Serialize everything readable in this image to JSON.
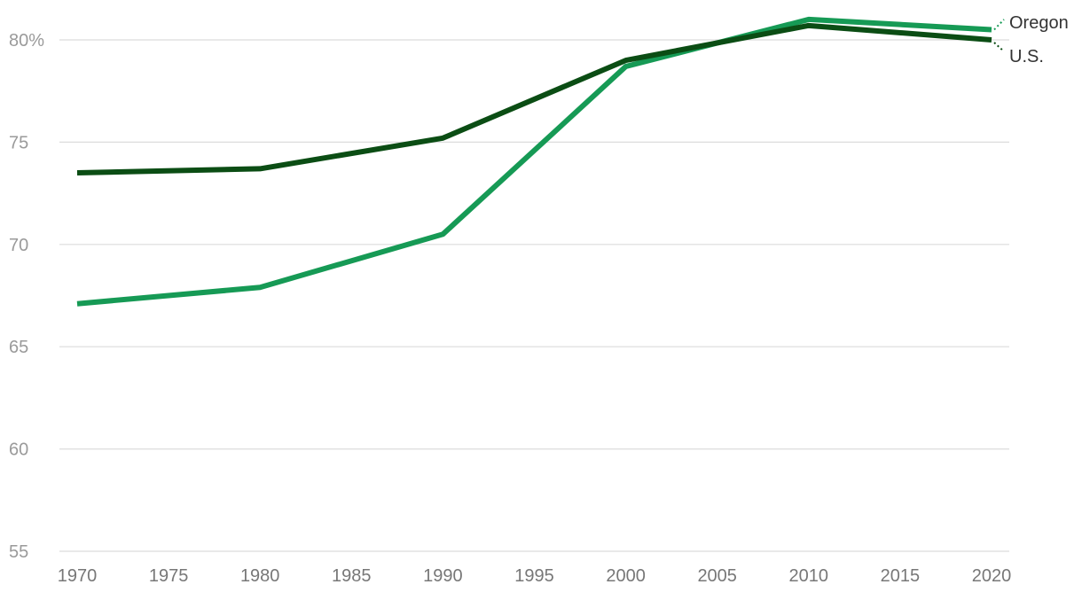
{
  "chart_data": {
    "type": "line",
    "title": "",
    "xlabel": "",
    "ylabel": "",
    "x": [
      1970,
      1980,
      1990,
      2000,
      2010,
      2020
    ],
    "xlim": [
      1970,
      2020
    ],
    "ylim": [
      55,
      81.5
    ],
    "x_ticks": [
      "1970",
      "1975",
      "1980",
      "1985",
      "1990",
      "1995",
      "2000",
      "2005",
      "2010",
      "2015",
      "2020"
    ],
    "y_ticks": [
      {
        "value": 80,
        "label": "80%"
      },
      {
        "value": 75,
        "label": "75"
      },
      {
        "value": 70,
        "label": "70"
      },
      {
        "value": 65,
        "label": "65"
      },
      {
        "value": 60,
        "label": "60"
      },
      {
        "value": 55,
        "label": "55"
      }
    ],
    "grid": true,
    "legend": "direct labels right",
    "series": [
      {
        "name": "Oregon",
        "color": "#169a55",
        "values": [
          67.1,
          67.9,
          70.5,
          78.7,
          81.0,
          80.5
        ]
      },
      {
        "name": "U.S.",
        "color": "#0b4d14",
        "values": [
          73.5,
          73.7,
          75.2,
          79.0,
          80.7,
          80.0
        ]
      }
    ]
  }
}
